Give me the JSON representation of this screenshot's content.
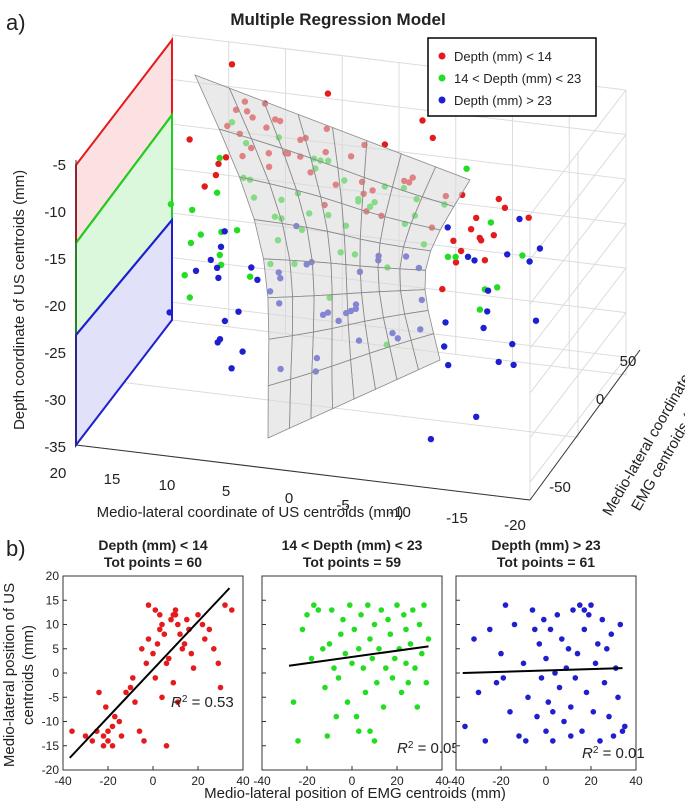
{
  "panel_a": {
    "label": "a)",
    "title": "Multiple Regression Model",
    "xlabel": "Medio-lateral coordinate of US centroids (mm)",
    "ylabel": "Depth coordinate of US centroids (mm)",
    "zlabel_line1": "Medio-lateral coordinate of",
    "zlabel_line2": "EMG centroids (mm)",
    "x_ticks": [
      "20",
      "15",
      "10",
      "5",
      "0",
      "-5",
      "-10",
      "-15",
      "-20"
    ],
    "y_ticks": [
      "-5",
      "-10",
      "-15",
      "-20",
      "-25",
      "-30",
      "-35"
    ],
    "z_ticks": [
      "50",
      "0",
      "-50"
    ],
    "legend": [
      {
        "label": "Depth (mm) < 14",
        "color": "#e41a1c"
      },
      {
        "label": "14 < Depth (mm) < 23",
        "color": "#22dd22"
      },
      {
        "label": "Depth (mm) > 23",
        "color": "#1f1fd0"
      }
    ]
  },
  "panel_b": {
    "label": "b)",
    "xlabel": "Medio-lateral position of EMG centroids (mm)",
    "ylabel_line1": "Medio-lateral position of US",
    "ylabel_line2": "centroids (mm)",
    "subplots": [
      {
        "title1": "Depth (mm) < 14",
        "title2": "Tot points = 60",
        "r2_label": "R",
        "r2_text": "2 = 0.53",
        "color": "#e41a1c"
      },
      {
        "title1": "14 < Depth (mm) < 23",
        "title2": "Tot points = 59",
        "r2_label": "R",
        "r2_text": "2 = 0.05",
        "color": "#22dd22"
      },
      {
        "title1": "Depth (mm) > 23",
        "title2": "Tot points = 61",
        "r2_label": "R",
        "r2_text": "2 = 0.01",
        "color": "#1f1fd0"
      }
    ]
  },
  "chart_data": [
    {
      "type": "scatter",
      "title": "Multiple Regression Model",
      "dimension": "3d",
      "xlabel": "Medio-lateral coordinate of US centroids (mm)",
      "ylabel": "Depth coordinate of US centroids (mm)",
      "zlabel": "Medio-lateral coordinate of EMG centroids (mm)",
      "xlim": [
        -20,
        20
      ],
      "ylim": [
        -35,
        -3
      ],
      "zlim": [
        -50,
        50
      ],
      "series": [
        {
          "name": "Depth (mm) < 14",
          "color": "#e41a1c",
          "count": 60
        },
        {
          "name": "14 < Depth (mm) < 23",
          "color": "#22dd22",
          "count": 59
        },
        {
          "name": "Depth (mm) > 23",
          "color": "#1f1fd0",
          "count": 61
        }
      ],
      "surface": "regression plane (saddle-shaped, grey)"
    },
    {
      "type": "scatter",
      "title": "Depth (mm) < 14 / Tot points = 60",
      "xlabel": "Medio-lateral position of EMG centroids (mm)",
      "ylabel": "Medio-lateral position of US centroids (mm)",
      "xlim": [
        -40,
        40
      ],
      "ylim": [
        -20,
        20
      ],
      "x_ticks": [
        -40,
        -20,
        0,
        20,
        40
      ],
      "y_ticks": [
        20,
        15,
        10,
        5,
        0,
        -5,
        -10,
        -15,
        -20
      ],
      "r2": 0.53,
      "fit_line": [
        [
          -37,
          -17.5
        ],
        [
          34,
          17.5
        ]
      ],
      "color": "#e41a1c",
      "points": [
        [
          -36,
          -12
        ],
        [
          -30,
          -13
        ],
        [
          -27,
          -14
        ],
        [
          -25,
          -12
        ],
        [
          -22,
          -13
        ],
        [
          -20,
          -12
        ],
        [
          -18,
          -11
        ],
        [
          -24,
          -4
        ],
        [
          -21,
          -7
        ],
        [
          -17,
          -9
        ],
        [
          -15,
          -10
        ],
        [
          -20,
          -14
        ],
        [
          -22,
          -15
        ],
        [
          -18,
          -15
        ],
        [
          -14,
          -13
        ],
        [
          -10,
          -3
        ],
        [
          -9,
          -1
        ],
        [
          -12,
          -4
        ],
        [
          -8,
          -6
        ],
        [
          -6,
          -12
        ],
        [
          -4,
          -14
        ],
        [
          -5,
          5
        ],
        [
          -3,
          2
        ],
        [
          -2,
          7
        ],
        [
          0,
          4
        ],
        [
          1,
          -1
        ],
        [
          2,
          6
        ],
        [
          3,
          9
        ],
        [
          3,
          12
        ],
        [
          -2,
          14
        ],
        [
          1,
          13
        ],
        [
          4,
          10
        ],
        [
          5,
          8
        ],
        [
          6,
          2
        ],
        [
          7,
          3
        ],
        [
          8,
          11
        ],
        [
          9,
          12
        ],
        [
          10,
          12
        ],
        [
          10,
          13
        ],
        [
          11,
          10
        ],
        [
          12,
          8
        ],
        [
          13,
          5
        ],
        [
          14,
          6
        ],
        [
          15,
          11
        ],
        [
          16,
          9
        ],
        [
          17,
          4
        ],
        [
          18,
          1
        ],
        [
          20,
          12
        ],
        [
          22,
          10
        ],
        [
          23,
          7
        ],
        [
          25,
          9
        ],
        [
          27,
          5
        ],
        [
          29,
          2
        ],
        [
          30,
          -3
        ],
        [
          32,
          14
        ],
        [
          35,
          13
        ],
        [
          9,
          -2
        ],
        [
          6,
          -15
        ],
        [
          4,
          -5
        ],
        [
          11,
          -6
        ]
      ]
    },
    {
      "type": "scatter",
      "title": "14 < Depth (mm) < 23 / Tot points = 59",
      "xlabel": "Medio-lateral position of EMG centroids (mm)",
      "xlim": [
        -40,
        40
      ],
      "ylim": [
        -20,
        20
      ],
      "x_ticks": [
        -40,
        -20,
        0,
        20,
        40
      ],
      "r2": 0.05,
      "fit_line": [
        [
          -28,
          1.5
        ],
        [
          34,
          5.5
        ]
      ],
      "color": "#22dd22",
      "points": [
        [
          -26,
          -6
        ],
        [
          -24,
          -14
        ],
        [
          -22,
          9
        ],
        [
          -20,
          12
        ],
        [
          -18,
          3
        ],
        [
          -17,
          14
        ],
        [
          -15,
          13
        ],
        [
          -13,
          5
        ],
        [
          -12,
          -3
        ],
        [
          -10,
          6
        ],
        [
          -9,
          13
        ],
        [
          -8,
          1
        ],
        [
          -6,
          -1
        ],
        [
          -5,
          8
        ],
        [
          -4,
          11
        ],
        [
          -3,
          4
        ],
        [
          -2,
          -6
        ],
        [
          -1,
          14
        ],
        [
          0,
          2
        ],
        [
          1,
          9
        ],
        [
          2,
          -9
        ],
        [
          3,
          5
        ],
        [
          4,
          12
        ],
        [
          5,
          1
        ],
        [
          6,
          -4
        ],
        [
          7,
          14
        ],
        [
          8,
          7
        ],
        [
          9,
          3
        ],
        [
          10,
          -14
        ],
        [
          10,
          10
        ],
        [
          11,
          -2
        ],
        [
          12,
          5
        ],
        [
          13,
          13
        ],
        [
          14,
          -7
        ],
        [
          15,
          1
        ],
        [
          16,
          11
        ],
        [
          17,
          8
        ],
        [
          18,
          -1
        ],
        [
          19,
          3
        ],
        [
          20,
          14
        ],
        [
          21,
          5
        ],
        [
          22,
          -4
        ],
        [
          23,
          12
        ],
        [
          24,
          9
        ],
        [
          25,
          -2
        ],
        [
          26,
          6
        ],
        [
          27,
          13
        ],
        [
          28,
          1
        ],
        [
          29,
          -7
        ],
        [
          30,
          10
        ],
        [
          31,
          4
        ],
        [
          32,
          14
        ],
        [
          33,
          -2
        ],
        [
          34,
          7
        ],
        [
          -7,
          -9
        ],
        [
          -11,
          -13
        ],
        [
          3,
          -12
        ],
        [
          8,
          -12
        ],
        [
          24,
          2
        ]
      ]
    },
    {
      "type": "scatter",
      "title": "Depth (mm) > 23 / Tot points = 61",
      "xlabel": "Medio-lateral position of EMG centroids (mm)",
      "xlim": [
        -40,
        40
      ],
      "ylim": [
        -20,
        20
      ],
      "x_ticks": [
        -40,
        -20,
        0,
        20,
        40
      ],
      "r2": 0.01,
      "fit_line": [
        [
          -37,
          0
        ],
        [
          34,
          1
        ]
      ],
      "color": "#1f1fd0",
      "points": [
        [
          -36,
          -11
        ],
        [
          -32,
          7
        ],
        [
          -30,
          -4
        ],
        [
          -27,
          -14
        ],
        [
          -25,
          9
        ],
        [
          -22,
          -2
        ],
        [
          -20,
          4
        ],
        [
          -18,
          14
        ],
        [
          -16,
          -8
        ],
        [
          -14,
          10
        ],
        [
          -12,
          -13
        ],
        [
          -10,
          2
        ],
        [
          -8,
          -5
        ],
        [
          -6,
          13
        ],
        [
          -4,
          -9
        ],
        [
          -3,
          6
        ],
        [
          -2,
          -1
        ],
        [
          -1,
          11
        ],
        [
          0,
          -12
        ],
        [
          0,
          3
        ],
        [
          1,
          -6
        ],
        [
          2,
          9
        ],
        [
          3,
          -14
        ],
        [
          4,
          0
        ],
        [
          5,
          12
        ],
        [
          6,
          -3
        ],
        [
          7,
          7
        ],
        [
          8,
          -10
        ],
        [
          9,
          1
        ],
        [
          10,
          5
        ],
        [
          11,
          -7
        ],
        [
          12,
          13
        ],
        [
          13,
          -1
        ],
        [
          14,
          4
        ],
        [
          15,
          14
        ],
        [
          16,
          -12
        ],
        [
          17,
          9
        ],
        [
          18,
          -4
        ],
        [
          19,
          12
        ],
        [
          20,
          14
        ],
        [
          21,
          -8
        ],
        [
          22,
          2
        ],
        [
          23,
          6
        ],
        [
          24,
          -14
        ],
        [
          25,
          11
        ],
        [
          26,
          -2
        ],
        [
          27,
          5
        ],
        [
          28,
          -9
        ],
        [
          29,
          8
        ],
        [
          30,
          -13
        ],
        [
          31,
          1
        ],
        [
          32,
          -5
        ],
        [
          33,
          10
        ],
        [
          34,
          -12
        ],
        [
          35,
          -11
        ],
        [
          -9,
          -14
        ],
        [
          -19,
          -1
        ],
        [
          -5,
          9
        ],
        [
          3,
          -8
        ],
        [
          17,
          13
        ],
        [
          11,
          -13
        ]
      ]
    }
  ]
}
